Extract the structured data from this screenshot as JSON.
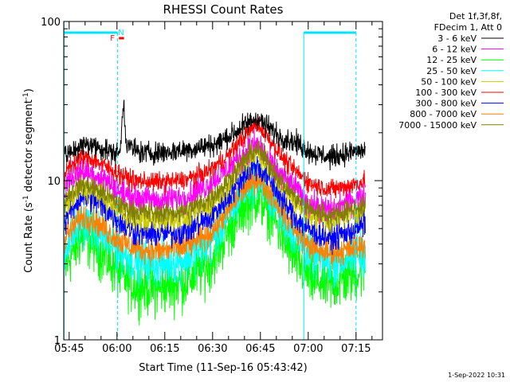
{
  "chart_data": {
    "type": "line",
    "title": "RHESSI Count Rates",
    "xlabel": "Start Time (11-Sep-16 05:43:42)",
    "ylabel_main": "Count Rate (s",
    "ylabel_sup1": "-1",
    "ylabel_mid": " detector segment",
    "ylabel_sup2": "-1",
    "ylabel_end": ")",
    "y_scale": "log",
    "ylim": [
      1,
      100
    ],
    "y_ticks": [
      {
        "value": 1,
        "label": "1"
      },
      {
        "value": 10,
        "label": "10"
      },
      {
        "value": 100,
        "label": "100"
      }
    ],
    "x_range_min": [
      -1.7,
      78.3
    ],
    "x_ticks": [
      {
        "min": 0,
        "label": "05:45"
      },
      {
        "min": 15,
        "label": "06:00"
      },
      {
        "min": 30,
        "label": "06:15"
      },
      {
        "min": 45,
        "label": "06:30"
      },
      {
        "min": 60,
        "label": "06:45"
      },
      {
        "min": 75,
        "label": "07:00"
      },
      {
        "min": 90,
        "label": "07:15"
      }
    ],
    "legend_header": [
      "Det 1f,3f,8f,",
      "FDecim 1, Att 0"
    ],
    "legend_placement": "right-outside",
    "timestamp": "1-Sep-2022 10:31",
    "flags": [
      {
        "label": "F",
        "color": "#ff0000"
      },
      {
        "label": "N",
        "color": "#00e5ff"
      }
    ],
    "series": [
      {
        "name": "3 - 6 keV",
        "color": "#000000",
        "pts": [
          [
            -1,
            14
          ],
          [
            2,
            16
          ],
          [
            6,
            17
          ],
          [
            10,
            16
          ],
          [
            14,
            15
          ],
          [
            16,
            15
          ],
          [
            17,
            32
          ],
          [
            18,
            17
          ],
          [
            22,
            15
          ],
          [
            30,
            15
          ],
          [
            40,
            16
          ],
          [
            46,
            17
          ],
          [
            52,
            20
          ],
          [
            56,
            23
          ],
          [
            59,
            25
          ],
          [
            62,
            22
          ],
          [
            66,
            19
          ],
          [
            72,
            17
          ],
          [
            76,
            15
          ],
          [
            82,
            14
          ],
          [
            88,
            15
          ],
          [
            93,
            15.5
          ]
        ],
        "noise": 0.08
      },
      {
        "name": "6 - 12 keV",
        "color": "#ff00ff",
        "pts": [
          [
            -1,
            10
          ],
          [
            4,
            11.5
          ],
          [
            8,
            11
          ],
          [
            12,
            10
          ],
          [
            16,
            8.5
          ],
          [
            20,
            7.8
          ],
          [
            28,
            7.5
          ],
          [
            36,
            7.8
          ],
          [
            44,
            9.5
          ],
          [
            50,
            12
          ],
          [
            55,
            15
          ],
          [
            59,
            17
          ],
          [
            63,
            13
          ],
          [
            68,
            10
          ],
          [
            72,
            8.5
          ],
          [
            76,
            7
          ],
          [
            82,
            6.5
          ],
          [
            88,
            7.5
          ],
          [
            93,
            8
          ]
        ],
        "noise": 0.1
      },
      {
        "name": "12 - 25 keV",
        "color": "#00ff00",
        "pts": [
          [
            -1,
            3
          ],
          [
            4,
            4.5
          ],
          [
            8,
            4
          ],
          [
            12,
            3.2
          ],
          [
            16,
            2.6
          ],
          [
            20,
            2.2
          ],
          [
            28,
            2.1
          ],
          [
            36,
            2.3
          ],
          [
            44,
            3
          ],
          [
            50,
            4.8
          ],
          [
            55,
            7
          ],
          [
            59,
            8
          ],
          [
            63,
            6.5
          ],
          [
            68,
            4
          ],
          [
            72,
            3
          ],
          [
            76,
            2.4
          ],
          [
            82,
            2.2
          ],
          [
            88,
            2.5
          ],
          [
            93,
            2.8
          ]
        ],
        "noise": 0.2
      },
      {
        "name": "25 - 50 keV",
        "color": "#00ffff",
        "pts": [
          [
            -1,
            4
          ],
          [
            4,
            5.5
          ],
          [
            8,
            5
          ],
          [
            12,
            4.2
          ],
          [
            16,
            3.6
          ],
          [
            20,
            3.2
          ],
          [
            28,
            3
          ],
          [
            36,
            3.2
          ],
          [
            44,
            4
          ],
          [
            50,
            6
          ],
          [
            55,
            9
          ],
          [
            59,
            10.5
          ],
          [
            63,
            8
          ],
          [
            68,
            5.5
          ],
          [
            72,
            4.2
          ],
          [
            76,
            3.4
          ],
          [
            82,
            3
          ],
          [
            88,
            3.3
          ],
          [
            93,
            3.6
          ]
        ],
        "noise": 0.16
      },
      {
        "name": "50 - 100 keV",
        "color": "#cccc00",
        "pts": [
          [
            -1,
            7
          ],
          [
            4,
            9
          ],
          [
            8,
            8.5
          ],
          [
            12,
            7.5
          ],
          [
            16,
            6.5
          ],
          [
            20,
            5.8
          ],
          [
            28,
            5.6
          ],
          [
            36,
            5.8
          ],
          [
            44,
            7
          ],
          [
            50,
            9.5
          ],
          [
            55,
            13
          ],
          [
            59,
            15
          ],
          [
            63,
            12
          ],
          [
            68,
            8.5
          ],
          [
            72,
            7
          ],
          [
            76,
            6
          ],
          [
            82,
            5.6
          ],
          [
            88,
            6.2
          ],
          [
            93,
            6.8
          ]
        ],
        "noise": 0.09
      },
      {
        "name": "100 - 300 keV",
        "color": "#ff0000",
        "pts": [
          [
            -1,
            12
          ],
          [
            4,
            14
          ],
          [
            8,
            13.5
          ],
          [
            12,
            12
          ],
          [
            16,
            11
          ],
          [
            20,
            10
          ],
          [
            28,
            9.8
          ],
          [
            36,
            10
          ],
          [
            44,
            11.5
          ],
          [
            50,
            14.5
          ],
          [
            55,
            19
          ],
          [
            59,
            23
          ],
          [
            63,
            18
          ],
          [
            68,
            13
          ],
          [
            72,
            11
          ],
          [
            76,
            9.5
          ],
          [
            82,
            8.8
          ],
          [
            88,
            9.3
          ],
          [
            93,
            10
          ]
        ],
        "noise": 0.07
      },
      {
        "name": "300 - 800 keV",
        "color": "#0000ff",
        "pts": [
          [
            -1,
            6
          ],
          [
            4,
            8
          ],
          [
            8,
            7.5
          ],
          [
            12,
            6.5
          ],
          [
            16,
            5.5
          ],
          [
            20,
            4.8
          ],
          [
            28,
            4.6
          ],
          [
            36,
            4.8
          ],
          [
            44,
            5.8
          ],
          [
            50,
            8
          ],
          [
            55,
            11
          ],
          [
            59,
            12.5
          ],
          [
            63,
            10
          ],
          [
            68,
            7
          ],
          [
            72,
            5.6
          ],
          [
            76,
            4.8
          ],
          [
            82,
            4.4
          ],
          [
            88,
            4.8
          ],
          [
            93,
            5.4
          ]
        ],
        "noise": 0.1
      },
      {
        "name": "800 - 7000 keV",
        "color": "#ff8000",
        "pts": [
          [
            -1,
            4.5
          ],
          [
            4,
            6
          ],
          [
            8,
            5.6
          ],
          [
            12,
            4.8
          ],
          [
            16,
            4.2
          ],
          [
            20,
            3.8
          ],
          [
            28,
            3.6
          ],
          [
            36,
            3.8
          ],
          [
            44,
            4.6
          ],
          [
            50,
            6.5
          ],
          [
            55,
            9
          ],
          [
            59,
            10.5
          ],
          [
            63,
            8.5
          ],
          [
            68,
            6
          ],
          [
            72,
            4.6
          ],
          [
            76,
            3.8
          ],
          [
            82,
            3.5
          ],
          [
            88,
            3.7
          ],
          [
            93,
            4
          ]
        ],
        "noise": 0.1
      },
      {
        "name": "7000 - 15000 keV",
        "color": "#808000",
        "pts": [
          [
            -1,
            8
          ],
          [
            4,
            9.5
          ],
          [
            8,
            9
          ],
          [
            12,
            8
          ],
          [
            16,
            7
          ],
          [
            20,
            6.4
          ],
          [
            28,
            6.2
          ],
          [
            36,
            6.4
          ],
          [
            44,
            7.6
          ],
          [
            50,
            10
          ],
          [
            55,
            13.5
          ],
          [
            59,
            16
          ],
          [
            63,
            12.5
          ],
          [
            68,
            9
          ],
          [
            72,
            7.5
          ],
          [
            76,
            6.5
          ],
          [
            82,
            6
          ],
          [
            88,
            6.5
          ],
          [
            93,
            7
          ]
        ],
        "noise": 0.08
      }
    ]
  }
}
